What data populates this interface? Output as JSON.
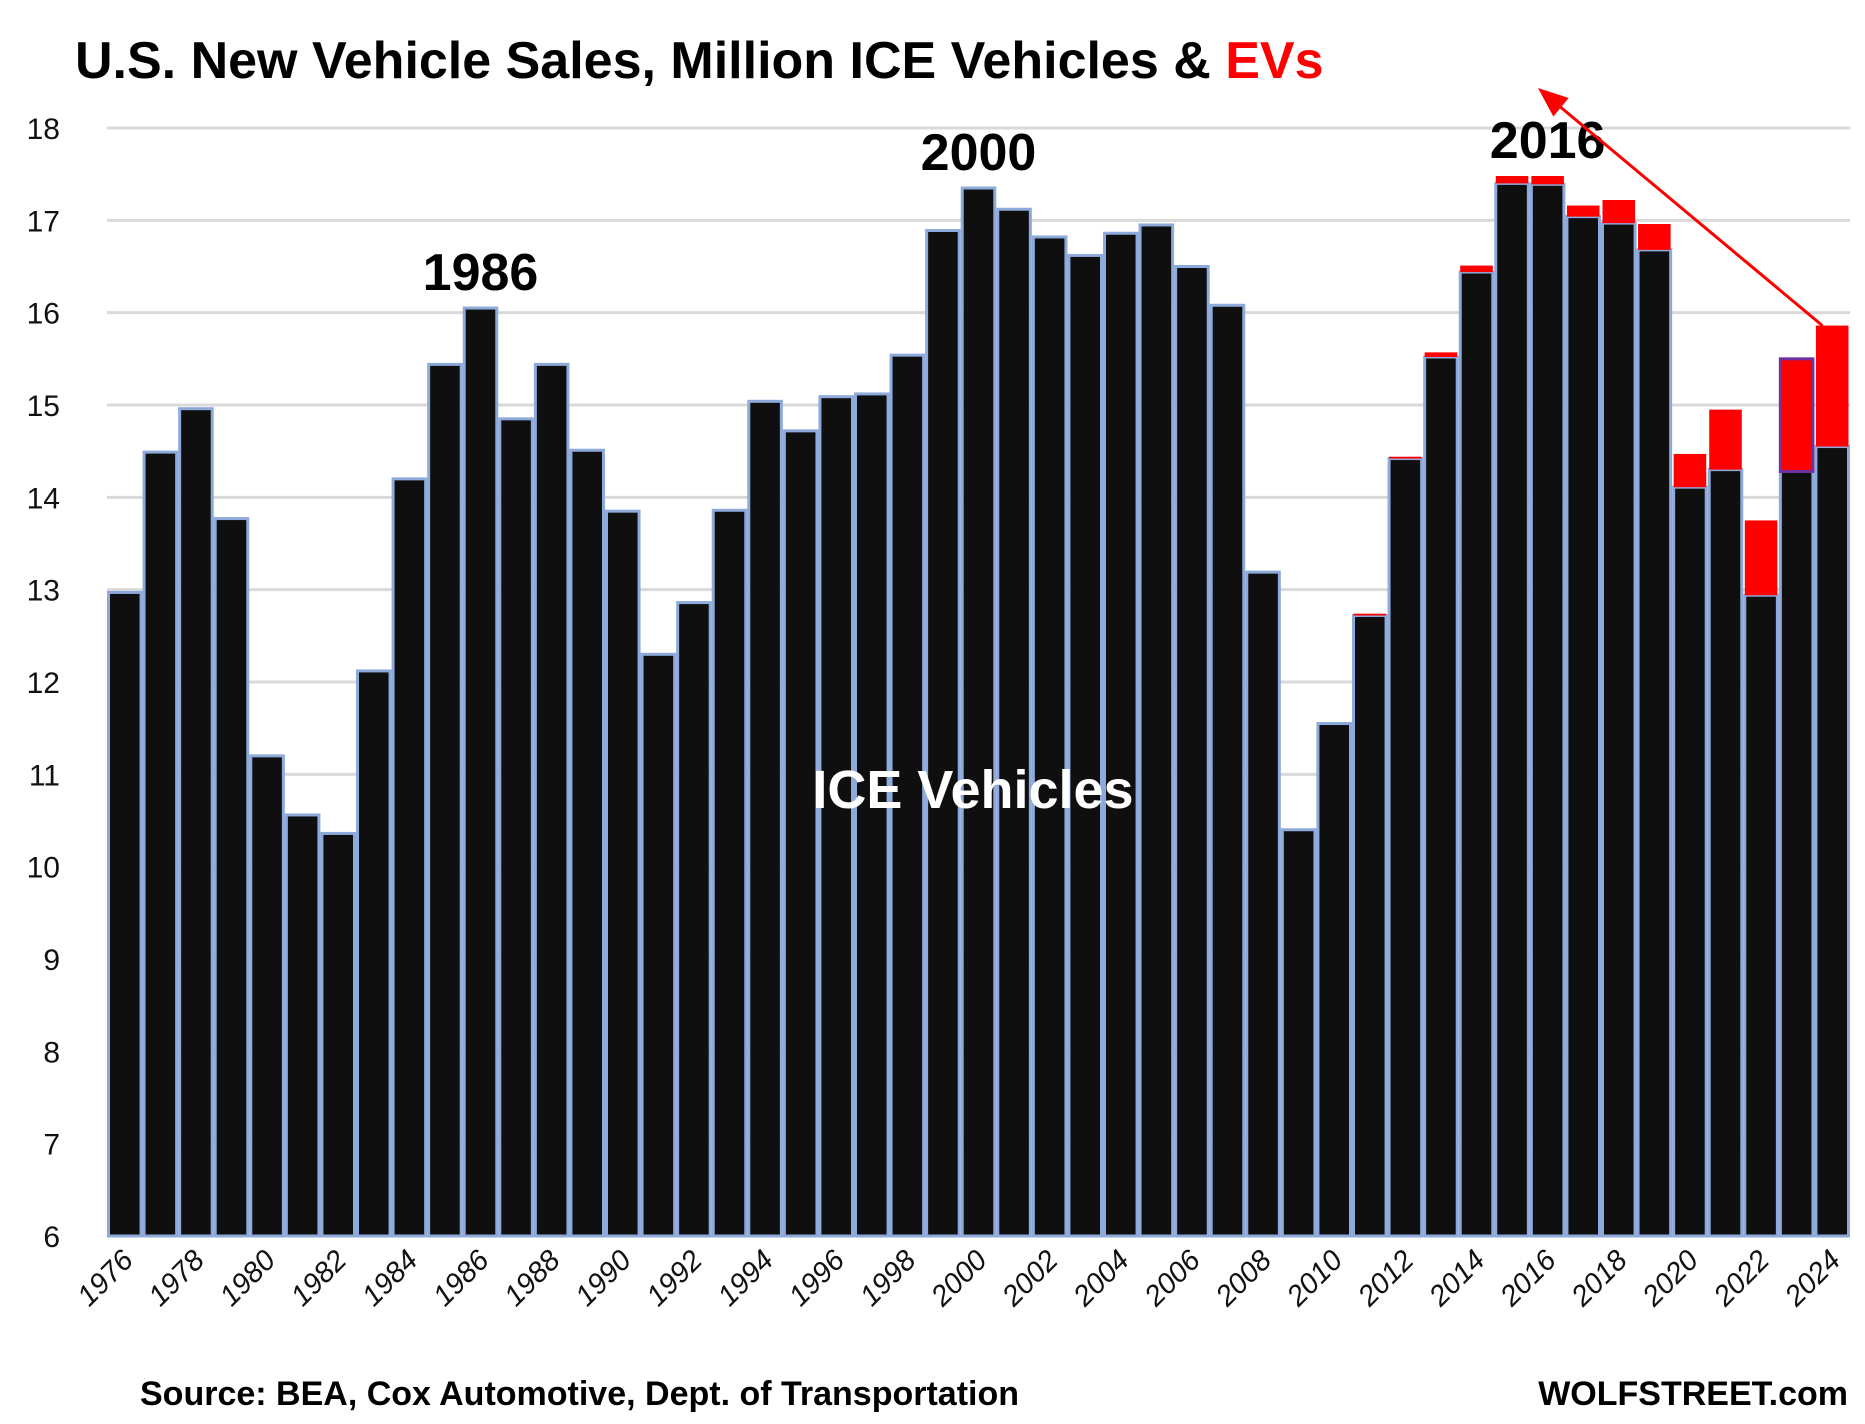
{
  "chart_data": {
    "type": "bar",
    "stacked": true,
    "title_parts": [
      {
        "text": "U.S. New Vehicle Sales, Million ICE Vehicles & ",
        "color": "#000000"
      },
      {
        "text": "EVs",
        "color": "#ff0000"
      }
    ],
    "xlabel": "",
    "ylabel": "",
    "ylim": [
      6,
      18
    ],
    "yticks": [
      6,
      7,
      8,
      9,
      10,
      11,
      12,
      13,
      14,
      15,
      16,
      17,
      18
    ],
    "grid": true,
    "categories": [
      1976,
      1977,
      1978,
      1979,
      1980,
      1981,
      1982,
      1983,
      1984,
      1985,
      1986,
      1987,
      1988,
      1989,
      1990,
      1991,
      1992,
      1993,
      1994,
      1995,
      1996,
      1997,
      1998,
      1999,
      2000,
      2001,
      2002,
      2003,
      2004,
      2005,
      2006,
      2007,
      2008,
      2009,
      2010,
      2011,
      2012,
      2013,
      2014,
      2015,
      2016,
      2017,
      2018,
      2019,
      2020,
      2021,
      2022,
      2023,
      2024
    ],
    "xtick_labels": [
      "1976",
      "1978",
      "1980",
      "1982",
      "1984",
      "1986",
      "1988",
      "1990",
      "1992",
      "1994",
      "1996",
      "1998",
      "2000",
      "2002",
      "2004",
      "2006",
      "2008",
      "2010",
      "2012",
      "2014",
      "2016",
      "2018",
      "2020",
      "2022",
      "2024"
    ],
    "series": [
      {
        "name": "ICE Vehicles",
        "color": "#0f0f0f",
        "edge_color": "#8eaadb",
        "values": [
          12.97,
          14.49,
          14.96,
          13.77,
          11.2,
          10.56,
          10.36,
          12.12,
          14.2,
          15.44,
          16.05,
          14.85,
          15.44,
          14.51,
          13.85,
          12.3,
          12.86,
          13.86,
          15.04,
          14.72,
          15.09,
          15.12,
          15.54,
          16.89,
          17.35,
          17.12,
          16.82,
          16.62,
          16.86,
          16.95,
          16.5,
          16.08,
          13.19,
          10.4,
          11.55,
          12.72,
          14.42,
          15.52,
          16.44,
          17.4,
          17.39,
          17.04,
          16.97,
          16.68,
          14.11,
          14.3,
          12.94,
          14.28,
          14.55
        ]
      },
      {
        "name": "EVs",
        "color": "#ff0000",
        "values": [
          0,
          0,
          0,
          0,
          0,
          0,
          0,
          0,
          0,
          0,
          0,
          0,
          0,
          0,
          0,
          0,
          0,
          0,
          0,
          0,
          0,
          0,
          0,
          0,
          0,
          0,
          0,
          0,
          0,
          0,
          0,
          0,
          0,
          0,
          0,
          0.02,
          0.02,
          0.05,
          0.07,
          0.08,
          0.09,
          0.12,
          0.25,
          0.28,
          0.36,
          0.65,
          0.81,
          1.22,
          1.31
        ]
      }
    ],
    "annotations": [
      {
        "text": "1986",
        "year": 1986
      },
      {
        "text": "2000",
        "year": 2000
      },
      {
        "text": "2016",
        "year": 2016
      }
    ],
    "series_label_inside": "ICE Vehicles",
    "arrow": {
      "from_year": 2024,
      "to": "EVs title word",
      "color": "#ff0000"
    },
    "highlighted_bar_year": 2023,
    "highlight_color": "#7030a0"
  },
  "footer": {
    "source": "Source: BEA, Cox Automotive, Dept. of Transportation",
    "brand": "WOLFSTREET.com"
  }
}
